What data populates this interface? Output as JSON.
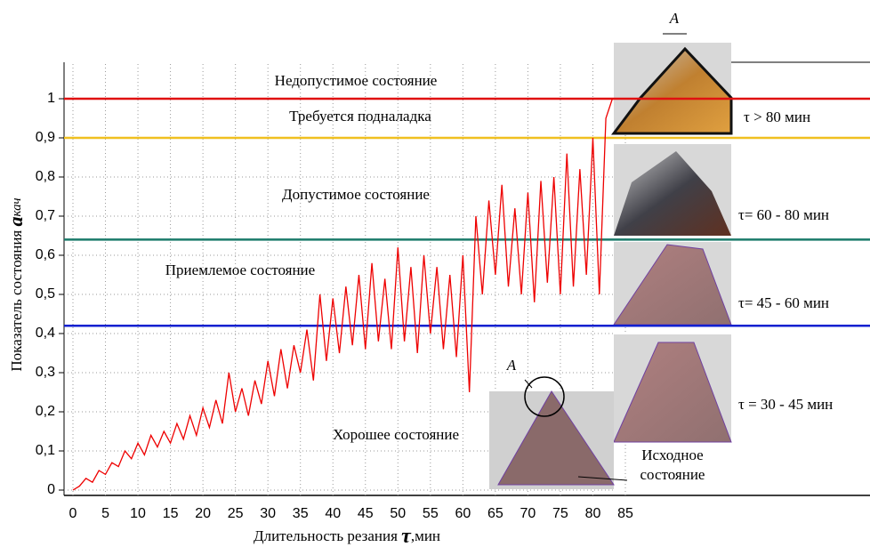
{
  "chart_data": {
    "type": "line",
    "x_label": "Длительность резания",
    "x_label_symbol": "τ",
    "x_label_unit": ",мин",
    "y_label": "Показатель состояния",
    "y_label_symbol": "a",
    "y_label_subscript": "кач",
    "xlim": [
      0,
      85
    ],
    "ylim": [
      0,
      1
    ],
    "xticks": [
      0,
      5,
      10,
      15,
      20,
      25,
      30,
      35,
      40,
      45,
      50,
      55,
      60,
      65,
      70,
      75,
      80,
      85
    ],
    "yticks": [
      0,
      {
        "value": 0.1,
        "label": "0,1"
      },
      {
        "value": 0.2,
        "label": "0,2"
      },
      {
        "value": 0.3,
        "label": "0,3"
      },
      {
        "value": 0.4,
        "label": "0,4"
      },
      {
        "value": 0.5,
        "label": "0,5"
      },
      {
        "value": 0.6,
        "label": "0,6"
      },
      {
        "value": 0.7,
        "label": "0,7"
      },
      {
        "value": 0.8,
        "label": "0,8"
      },
      {
        "value": 0.9,
        "label": "0,9"
      },
      1
    ],
    "grid": true,
    "series": [
      {
        "color": "#ee0000",
        "x": [
          0,
          1,
          2,
          3,
          4,
          5,
          6,
          7,
          8,
          9,
          10,
          11,
          12,
          13,
          14,
          15,
          16,
          17,
          18,
          19,
          20,
          21,
          22,
          23,
          24,
          25,
          26,
          27,
          28,
          29,
          30,
          31,
          32,
          33,
          34,
          35,
          36,
          37,
          38,
          39,
          40,
          41,
          42,
          43,
          44,
          45,
          46,
          47,
          48,
          49,
          50,
          51,
          52,
          53,
          54,
          55,
          56,
          57,
          58,
          59,
          60,
          61,
          62,
          63,
          64,
          65,
          66,
          67,
          68,
          69,
          70,
          71,
          72,
          73,
          74,
          75,
          76,
          77,
          78,
          79,
          80,
          81,
          82,
          83
        ],
        "values": [
          0.0,
          0.01,
          0.03,
          0.02,
          0.05,
          0.04,
          0.07,
          0.06,
          0.1,
          0.08,
          0.12,
          0.09,
          0.14,
          0.11,
          0.15,
          0.12,
          0.17,
          0.13,
          0.19,
          0.14,
          0.21,
          0.16,
          0.23,
          0.17,
          0.3,
          0.2,
          0.26,
          0.19,
          0.28,
          0.22,
          0.33,
          0.24,
          0.36,
          0.26,
          0.37,
          0.3,
          0.41,
          0.28,
          0.5,
          0.33,
          0.49,
          0.35,
          0.52,
          0.37,
          0.55,
          0.36,
          0.58,
          0.38,
          0.54,
          0.36,
          0.62,
          0.38,
          0.57,
          0.35,
          0.6,
          0.4,
          0.57,
          0.36,
          0.55,
          0.34,
          0.6,
          0.25,
          0.7,
          0.5,
          0.74,
          0.55,
          0.78,
          0.52,
          0.72,
          0.5,
          0.76,
          0.48,
          0.79,
          0.53,
          0.8,
          0.5,
          0.86,
          0.52,
          0.82,
          0.55,
          0.9,
          0.5,
          0.95,
          1.0
        ]
      }
    ],
    "thresholds": [
      {
        "value": 1,
        "color": "#e01010"
      },
      {
        "value": 0.9,
        "color": "#f0c020"
      },
      {
        "value": 0.64,
        "color": "#1a7a6a"
      },
      {
        "value": 0.42,
        "color": "#1020d0"
      }
    ],
    "zones": [
      "Недопустимое состояние",
      "Требуется подналадка",
      "Допустимое  состояние",
      "Приемлемое состояние",
      "Хорошее состояние"
    ],
    "stage_labels": [
      "τ > 80 мин",
      "τ= 60 - 80 мин",
      "τ= 45 - 60 мин",
      "τ = 30 - 45 мин"
    ],
    "detail_label": "A",
    "inset_label": "A",
    "initial_label": [
      "Исходное",
      "состояние"
    ]
  }
}
